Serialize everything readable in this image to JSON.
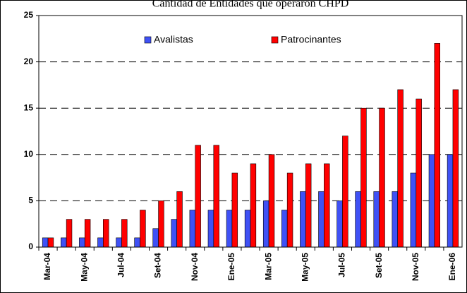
{
  "chart_data": {
    "type": "bar",
    "title": "Cantidad de Entidades que operaron CHPD",
    "categories": [
      "Mar-04",
      null,
      "May-04",
      null,
      "Jul-04",
      null,
      "Set-04",
      null,
      "Nov-04",
      null,
      "Ene-05",
      null,
      "Mar-05",
      null,
      "May-05",
      null,
      "Jul-05",
      null,
      "Set-05",
      null,
      "Nov-05",
      null,
      "Ene-06"
    ],
    "series": [
      {
        "name": "Avalistas",
        "color": "#3f51f5",
        "values": [
          1,
          1,
          1,
          1,
          1,
          1,
          2,
          3,
          4,
          4,
          4,
          4,
          5,
          4,
          6,
          6,
          5,
          6,
          6,
          6,
          8,
          10,
          10
        ]
      },
      {
        "name": "Patrocinantes",
        "color": "#ff0000",
        "values": [
          1,
          3,
          3,
          3,
          3,
          4,
          5,
          6,
          11,
          11,
          8,
          9,
          10,
          8,
          9,
          9,
          12,
          15,
          15,
          17,
          16,
          22,
          17
        ]
      }
    ],
    "ylim": [
      0,
      25
    ],
    "yticks": [
      0,
      5,
      10,
      15,
      20,
      25
    ],
    "grid": true,
    "legend": "top"
  }
}
